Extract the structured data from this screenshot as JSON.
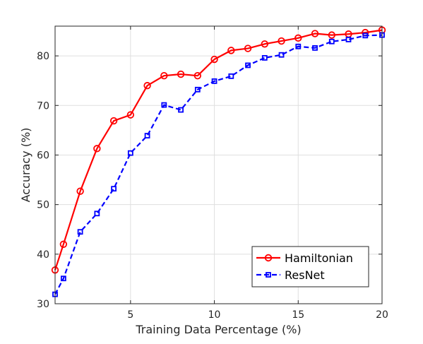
{
  "chart_data": {
    "type": "line",
    "title": "",
    "xlabel": "Training Data Percentage (%)",
    "ylabel": "Accuracy (%)",
    "xlim": [
      0.5,
      20
    ],
    "ylim": [
      30,
      86
    ],
    "xticks": [
      5,
      10,
      15,
      20
    ],
    "yticks": [
      30,
      40,
      50,
      60,
      70,
      80
    ],
    "grid": true,
    "legend_location": "bottom-right",
    "x": [
      0.5,
      1,
      2,
      3,
      4,
      5,
      6,
      7,
      8,
      9,
      10,
      11,
      12,
      13,
      14,
      15,
      16,
      17,
      18,
      19,
      20
    ],
    "series": [
      {
        "name": "Hamiltonian",
        "color": "#ff0000",
        "line_style": "solid",
        "marker": "circle",
        "values": [
          36.8,
          42.0,
          52.7,
          61.3,
          66.9,
          68.1,
          74.0,
          76.0,
          76.3,
          76.0,
          79.3,
          81.1,
          81.5,
          82.4,
          83.0,
          83.6,
          84.5,
          84.2,
          84.4,
          84.7,
          85.2
        ]
      },
      {
        "name": "ResNet",
        "color": "#0000ff",
        "line_style": "dashed",
        "marker": "square",
        "values": [
          31.9,
          35.1,
          44.5,
          48.2,
          53.2,
          60.4,
          63.9,
          70.1,
          69.1,
          73.2,
          74.9,
          75.9,
          78.1,
          79.6,
          80.2,
          81.9,
          81.6,
          82.9,
          83.3,
          84.1,
          84.2
        ]
      }
    ]
  }
}
